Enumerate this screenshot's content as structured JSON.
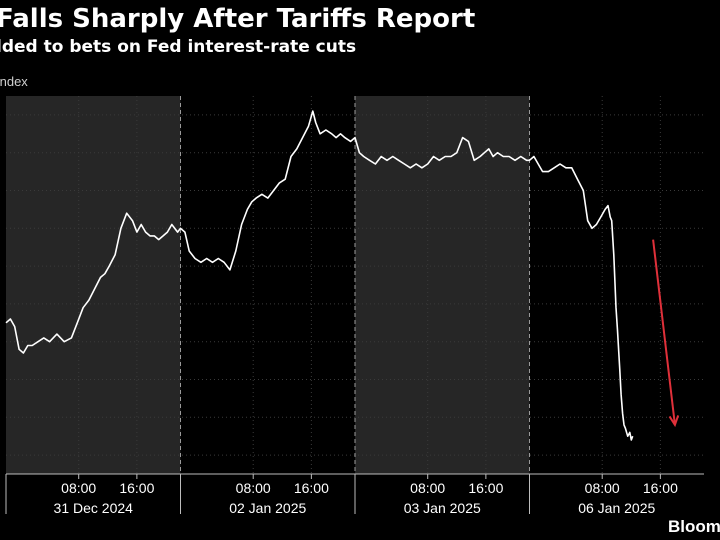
{
  "header": {
    "title": "Falls Sharply After Tariffs Report",
    "subtitle": "lded to bets on Fed interest-rate cuts",
    "series_label": "Index"
  },
  "footer": {
    "brand": "Bloom"
  },
  "colors": {
    "background": "#000000",
    "shade": "#262626",
    "line": "#ffffff",
    "arrow": "#e0303a",
    "grid": "#3a3a3a",
    "text": "#ffffff"
  },
  "chart_data": {
    "type": "line",
    "title": "Falls Sharply After Tariffs Report",
    "subtitle": "lded to bets on Fed interest-rate cuts",
    "grid": true,
    "xlim": [
      0,
      96
    ],
    "ylim": [
      0,
      100
    ],
    "sessions": [
      {
        "date": "31 Dec 2024",
        "shaded": true,
        "range": [
          0,
          24
        ]
      },
      {
        "date": "02 Jan 2025",
        "shaded": false,
        "range": [
          24,
          48
        ]
      },
      {
        "date": "03 Jan 2025",
        "shaded": true,
        "range": [
          48,
          72
        ]
      },
      {
        "date": "06 Jan 2025",
        "shaded": false,
        "range": [
          72,
          96
        ]
      }
    ],
    "x_ticks": [
      {
        "x": 10,
        "label": "08:00"
      },
      {
        "x": 18,
        "label": "16:00"
      },
      {
        "x": 34,
        "label": "08:00"
      },
      {
        "x": 42,
        "label": "16:00"
      },
      {
        "x": 58,
        "label": "08:00"
      },
      {
        "x": 66,
        "label": "16:00"
      },
      {
        "x": 82,
        "label": "08:00"
      },
      {
        "x": 90,
        "label": "16:00"
      }
    ],
    "day_labels": [
      {
        "x": 12,
        "label": "31 Dec 2024"
      },
      {
        "x": 36,
        "label": "02 Jan 2025"
      },
      {
        "x": 60,
        "label": "03 Jan 2025"
      },
      {
        "x": 84,
        "label": "06 Jan 2025"
      }
    ],
    "y_gridlines": [
      5,
      15,
      25,
      35,
      45,
      55,
      65,
      75,
      85,
      95
    ],
    "series": [
      {
        "x": [
          0,
          0.6,
          1.2,
          1.8,
          2.4,
          3.0,
          3.6,
          4.4,
          5.2,
          6.0,
          7.0,
          8.0,
          9.0,
          9.8,
          10.6,
          11.4,
          12.2,
          13.0,
          13.6,
          14.2,
          15.0,
          15.8,
          16.6,
          17.4,
          18.0,
          18.6,
          19.2,
          19.8,
          20.4,
          21.0,
          21.6,
          22.2,
          22.8,
          23.6,
          24.0,
          24.6,
          25.2,
          26.0,
          26.8,
          27.6,
          28.4,
          29.2,
          30.0,
          30.8,
          31.6,
          32.4,
          33.2,
          33.8,
          34.4,
          35.2,
          36.0,
          36.8,
          37.6,
          38.4,
          39.2,
          40.0,
          40.8,
          41.6,
          42.2,
          42.6,
          43.2,
          44.0,
          44.8,
          45.4,
          46.0,
          46.6,
          47.4,
          48.0,
          48.6,
          49.2,
          50.0,
          50.8,
          51.6,
          52.4,
          53.2,
          54.0,
          54.8,
          55.6,
          56.4,
          57.2,
          58.0,
          58.8,
          59.6,
          60.4,
          61.2,
          62.0,
          62.8,
          63.6,
          64.4,
          65.2,
          65.8,
          66.4,
          67.0,
          67.6,
          68.4,
          69.2,
          70.0,
          70.8,
          71.6,
          72.0,
          72.6,
          73.2,
          73.8,
          74.6,
          75.4,
          76.2,
          77.0,
          77.8,
          78.6,
          79.4,
          80.0,
          80.6,
          81.2,
          81.8,
          82.4,
          82.8,
          83.1,
          83.3,
          83.6,
          83.9,
          84.1,
          84.4,
          84.6,
          84.8,
          85.0,
          85.2,
          85.5,
          85.8,
          86.0,
          86.2
        ],
        "y": [
          40,
          41,
          39,
          33,
          32,
          34,
          34,
          35,
          36,
          35,
          37,
          35,
          36,
          40,
          44,
          46,
          49,
          52,
          53,
          55,
          58,
          65,
          69,
          67,
          64,
          66,
          64,
          63,
          63,
          62,
          63,
          64,
          66,
          64,
          65,
          64,
          59,
          57,
          56,
          57,
          56,
          57,
          56,
          54,
          59,
          66,
          70,
          72,
          73,
          74,
          73,
          75,
          77,
          78,
          84,
          86,
          89,
          92,
          96,
          93,
          90,
          91,
          90,
          89,
          90,
          89,
          88,
          89,
          85,
          84,
          83,
          82,
          84,
          83,
          84,
          83,
          82,
          81,
          82,
          81,
          82,
          84,
          83,
          84,
          84,
          85,
          89,
          88,
          83,
          84,
          85,
          86,
          84,
          85,
          84,
          84,
          83,
          84,
          83,
          83,
          84,
          82,
          80,
          80,
          81,
          82,
          81,
          81,
          78,
          75,
          67,
          65,
          66,
          68,
          70,
          71,
          68,
          67,
          58,
          44,
          38,
          28,
          21,
          16,
          13,
          12,
          10,
          11,
          9,
          10
        ]
      }
    ],
    "annotations": [
      {
        "type": "arrow",
        "from": [
          89,
          62
        ],
        "to": [
          92,
          13
        ]
      }
    ]
  }
}
